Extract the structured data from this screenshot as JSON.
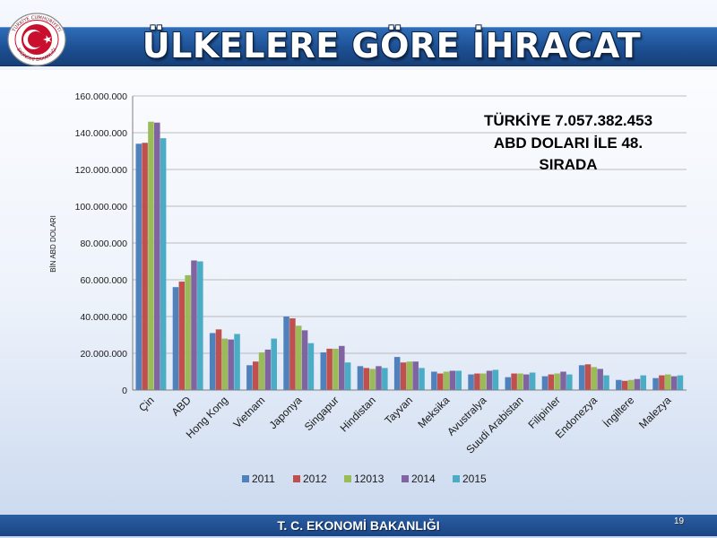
{
  "slide": {
    "title": "ÜLKELERE GÖRE İHRACAT",
    "footer": "T. C. EKONOMİ BAKANLIĞI",
    "page_number": "19",
    "annotation_lines": [
      "TÜRKİYE  7.057.382.453",
      "ABD DOLARI İLE 48.",
      "SIRADA"
    ],
    "logo_text": "TÜRKİYE CUMHURİYETİ EKONOMİ BAKANLIĞI"
  },
  "colors": {
    "header_band": "#1c4f93",
    "footer_band": "#1a4584",
    "logo_red": "#c8102e"
  },
  "chart_data": {
    "type": "bar",
    "xlabel": "",
    "ylabel": "BİN ABD DOLARI",
    "ylim": [
      0,
      160000000
    ],
    "yticks": [
      0,
      20000000,
      40000000,
      60000000,
      80000000,
      100000000,
      120000000,
      140000000,
      160000000
    ],
    "ytick_labels": [
      "0",
      "20.000.000",
      "40.000.000",
      "60.000.000",
      "80.000.000",
      "100.000.000",
      "120.000.000",
      "140.000.000",
      "160.000.000"
    ],
    "grid": true,
    "legend": "bottom",
    "categories": [
      "Çin",
      "ABD",
      "Hong Kong",
      "Vietnam",
      "Japonya",
      "Singapur",
      "Hindistan",
      "Tayvan",
      "Meksika",
      "Avustralya",
      "Suudi Arabistan",
      "Filipinler",
      "Endonezya",
      "İngiltere",
      "Malezya"
    ],
    "series": [
      {
        "name": "2011",
        "color": "#4f81bd",
        "values": [
          134000000,
          56000000,
          31000000,
          13500000,
          40000000,
          20500000,
          13000000,
          18000000,
          10000000,
          8500000,
          7000000,
          7500000,
          13500000,
          5500000,
          6500000
        ]
      },
      {
        "name": "2012",
        "color": "#c0504d",
        "values": [
          134500000,
          59000000,
          33000000,
          15500000,
          39000000,
          22500000,
          12000000,
          15000000,
          9000000,
          9000000,
          9000000,
          8500000,
          14000000,
          5000000,
          8000000
        ]
      },
      {
        "name": "12013",
        "color": "#9bbb59",
        "values": [
          146000000,
          62500000,
          28000000,
          20500000,
          35000000,
          22500000,
          11500000,
          15500000,
          10000000,
          9000000,
          9000000,
          9000000,
          12500000,
          5500000,
          8500000
        ]
      },
      {
        "name": "2014",
        "color": "#8064a2",
        "values": [
          145500000,
          70500000,
          27500000,
          22000000,
          32500000,
          24000000,
          13000000,
          15500000,
          10500000,
          10500000,
          8500000,
          10000000,
          11500000,
          6000000,
          7500000
        ]
      },
      {
        "name": "2015",
        "color": "#4bacc6",
        "values": [
          137000000,
          70000000,
          30500000,
          28000000,
          25500000,
          15000000,
          12000000,
          12000000,
          10500000,
          11000000,
          9500000,
          8500000,
          8000000,
          8000000,
          8000000
        ]
      }
    ]
  }
}
